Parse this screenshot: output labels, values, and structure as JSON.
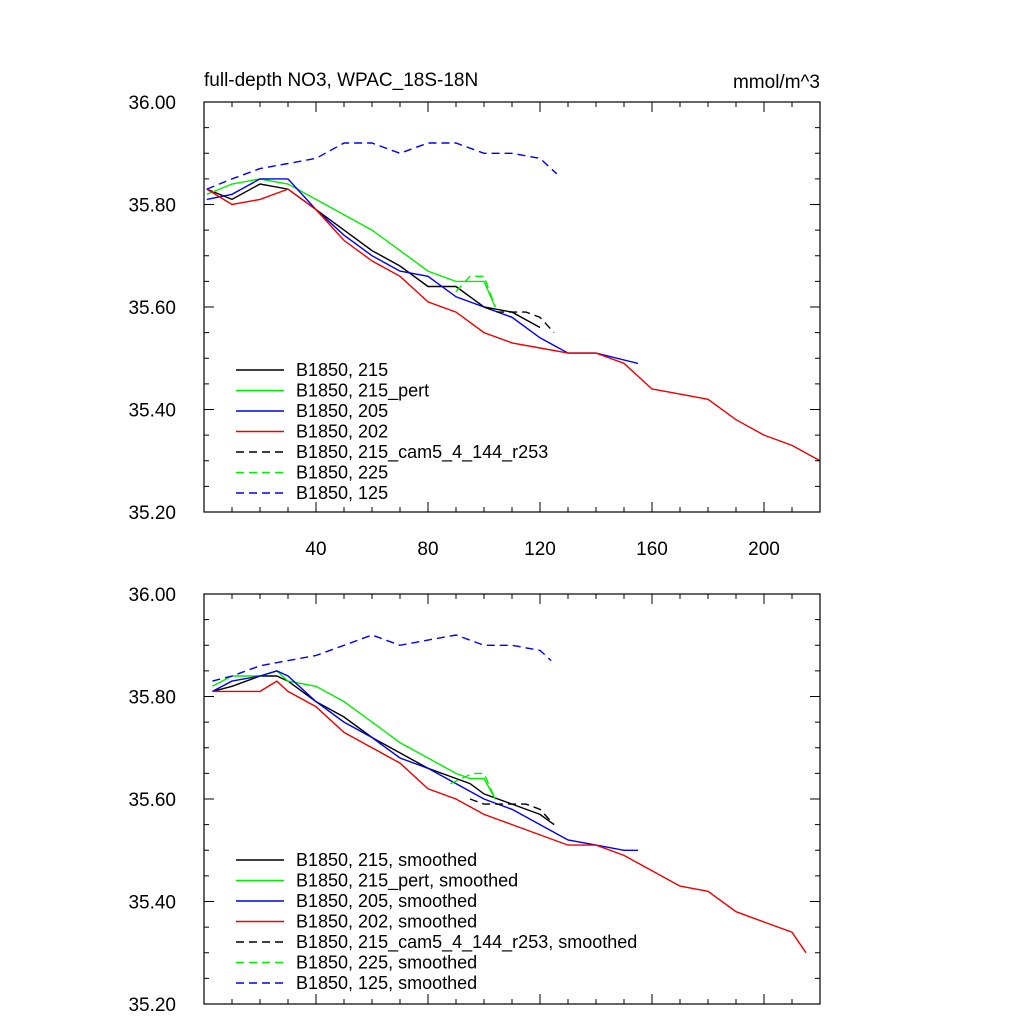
{
  "chart_data": [
    {
      "type": "line",
      "title": "full-depth NO3, WPAC_18S-18N",
      "units_label": "mmol/m^3",
      "xlabel": "",
      "ylabel": "",
      "xlim": [
        0,
        220
      ],
      "ylim": [
        35.2,
        36.0
      ],
      "x_ticks": [
        40,
        80,
        120,
        160,
        200
      ],
      "x_tick_labels": [
        "40",
        "80",
        "120",
        "160",
        "200"
      ],
      "y_ticks": [
        35.2,
        35.4,
        35.6,
        35.8,
        36.0
      ],
      "y_tick_labels": [
        "35.20",
        "35.40",
        "35.60",
        "35.80",
        "36.00"
      ],
      "legend_position": "bottom-left",
      "series": [
        {
          "name": "B1850, 215",
          "color": "#000000",
          "dash": "solid",
          "x": [
            1,
            10,
            20,
            30,
            40,
            50,
            60,
            70,
            80,
            90,
            100,
            110,
            120
          ],
          "values": [
            35.83,
            35.81,
            35.84,
            35.83,
            35.79,
            35.75,
            35.71,
            35.68,
            35.64,
            35.64,
            35.6,
            35.59,
            35.56
          ]
        },
        {
          "name": "B1850, 215_pert",
          "color": "#00ee00",
          "dash": "solid",
          "x": [
            1,
            10,
            20,
            30,
            40,
            50,
            60,
            70,
            80,
            90,
            100,
            104
          ],
          "values": [
            35.82,
            35.84,
            35.85,
            35.84,
            35.81,
            35.78,
            35.75,
            35.71,
            35.67,
            35.65,
            35.65,
            35.6
          ]
        },
        {
          "name": "B1850, 205",
          "color": "#0000ee",
          "dash": "solid",
          "x": [
            1,
            10,
            20,
            30,
            40,
            50,
            60,
            70,
            80,
            90,
            100,
            110,
            120,
            130,
            140,
            155
          ],
          "values": [
            35.81,
            35.82,
            35.85,
            35.85,
            35.79,
            35.74,
            35.7,
            35.67,
            35.66,
            35.62,
            35.6,
            35.58,
            35.54,
            35.51,
            35.51,
            35.49
          ]
        },
        {
          "name": "B1850, 202",
          "color": "#ee0000",
          "dash": "solid",
          "x": [
            1,
            10,
            20,
            30,
            40,
            50,
            60,
            70,
            80,
            90,
            100,
            110,
            120,
            130,
            140,
            150,
            160,
            170,
            180,
            190,
            200,
            210,
            220
          ],
          "values": [
            35.83,
            35.8,
            35.81,
            35.83,
            35.79,
            35.73,
            35.69,
            35.66,
            35.61,
            35.59,
            35.55,
            35.53,
            35.52,
            35.51,
            35.51,
            35.49,
            35.44,
            35.43,
            35.42,
            35.38,
            35.35,
            35.33,
            35.3
          ]
        },
        {
          "name": "B1850, 215_cam5_4_144_r253",
          "color": "#000000",
          "dash": "dashed",
          "x": [
            100,
            105,
            110,
            115,
            120,
            125
          ],
          "values": [
            35.6,
            35.59,
            35.59,
            35.59,
            35.58,
            35.55
          ]
        },
        {
          "name": "B1850, 225",
          "color": "#00ee00",
          "dash": "dashed",
          "x": [
            90,
            95,
            100,
            104
          ],
          "values": [
            35.63,
            35.66,
            35.66,
            35.6
          ]
        },
        {
          "name": "B1850, 125",
          "color": "#0000ee",
          "dash": "dashed",
          "x": [
            1,
            10,
            20,
            30,
            40,
            50,
            60,
            70,
            80,
            90,
            100,
            110,
            120,
            126
          ],
          "values": [
            35.83,
            35.85,
            35.87,
            35.88,
            35.89,
            35.92,
            35.92,
            35.9,
            35.92,
            35.92,
            35.9,
            35.9,
            35.89,
            35.86
          ]
        }
      ]
    },
    {
      "type": "line",
      "title": "",
      "units_label": "",
      "xlabel": "",
      "ylabel": "",
      "xlim": [
        0,
        220
      ],
      "ylim": [
        35.2,
        36.0
      ],
      "x_ticks": [
        40,
        80,
        120,
        160,
        200
      ],
      "x_tick_labels": [],
      "y_ticks": [
        35.2,
        35.4,
        35.6,
        35.8,
        36.0
      ],
      "y_tick_labels": [
        "35.20",
        "35.40",
        "35.60",
        "35.80",
        "36.00"
      ],
      "legend_position": "bottom-left",
      "series": [
        {
          "name": "B1850, 215, smoothed",
          "color": "#000000",
          "dash": "solid",
          "x": [
            3,
            10,
            20,
            26,
            30,
            40,
            50,
            60,
            70,
            80,
            90,
            95,
            100,
            110,
            120,
            125
          ],
          "values": [
            35.81,
            35.82,
            35.84,
            35.84,
            35.83,
            35.79,
            35.76,
            35.72,
            35.69,
            35.66,
            35.64,
            35.63,
            35.61,
            35.59,
            35.57,
            35.55
          ]
        },
        {
          "name": "B1850, 215_pert, smoothed",
          "color": "#00ee00",
          "dash": "solid",
          "x": [
            3,
            10,
            20,
            26,
            30,
            40,
            50,
            60,
            70,
            80,
            90,
            95,
            100,
            104
          ],
          "values": [
            35.82,
            35.84,
            35.84,
            35.85,
            35.83,
            35.82,
            35.79,
            35.75,
            35.71,
            35.68,
            35.65,
            35.64,
            35.64,
            35.6
          ]
        },
        {
          "name": "B1850, 205, smoothed",
          "color": "#0000ee",
          "dash": "solid",
          "x": [
            3,
            10,
            20,
            26,
            30,
            40,
            50,
            60,
            70,
            80,
            90,
            100,
            110,
            120,
            130,
            140,
            150,
            155
          ],
          "values": [
            35.81,
            35.83,
            35.84,
            35.85,
            35.84,
            35.79,
            35.75,
            35.72,
            35.68,
            35.66,
            35.63,
            35.6,
            35.58,
            35.55,
            35.52,
            35.51,
            35.5,
            35.5
          ]
        },
        {
          "name": "B1850, 202, smoothed",
          "color": "#ee0000",
          "dash": "solid",
          "x": [
            3,
            10,
            20,
            26,
            30,
            40,
            50,
            60,
            70,
            80,
            90,
            100,
            110,
            120,
            130,
            140,
            150,
            160,
            170,
            180,
            190,
            200,
            210,
            215
          ],
          "values": [
            35.81,
            35.81,
            35.81,
            35.83,
            35.81,
            35.78,
            35.73,
            35.7,
            35.67,
            35.62,
            35.6,
            35.57,
            35.55,
            35.53,
            35.51,
            35.51,
            35.49,
            35.46,
            35.43,
            35.42,
            35.38,
            35.36,
            35.34,
            35.3
          ]
        },
        {
          "name": "B1850, 215_cam5_4_144_r253, smoothed",
          "color": "#000000",
          "dash": "dashed",
          "x": [
            95,
            100,
            105,
            110,
            115,
            120,
            125
          ],
          "values": [
            35.6,
            35.59,
            35.59,
            35.59,
            35.59,
            35.58,
            35.55
          ]
        },
        {
          "name": "B1850, 225, smoothed",
          "color": "#00ee00",
          "dash": "dashed",
          "x": [
            88,
            92,
            96,
            100,
            104
          ],
          "values": [
            35.63,
            35.64,
            35.65,
            35.65,
            35.6
          ]
        },
        {
          "name": "B1850, 125, smoothed",
          "color": "#0000ee",
          "dash": "dashed",
          "x": [
            3,
            10,
            20,
            30,
            40,
            50,
            60,
            70,
            80,
            90,
            100,
            110,
            120,
            124
          ],
          "values": [
            35.83,
            35.84,
            35.86,
            35.87,
            35.88,
            35.9,
            35.92,
            35.9,
            35.91,
            35.92,
            35.9,
            35.9,
            35.89,
            35.87
          ]
        }
      ]
    }
  ]
}
